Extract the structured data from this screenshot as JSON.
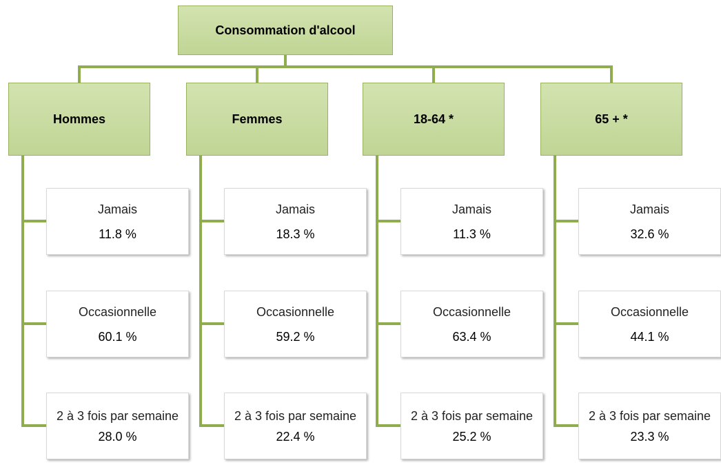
{
  "root": {
    "title": "Consommation d'alcool"
  },
  "groups": [
    {
      "label": "Hommes",
      "items": [
        {
          "label": "Jamais",
          "value": "11.8 %"
        },
        {
          "label": "Occasionnelle",
          "value": "60.1 %"
        },
        {
          "label": "2 à 3 fois par semaine",
          "value": "28.0 %"
        }
      ]
    },
    {
      "label": "Femmes",
      "items": [
        {
          "label": "Jamais",
          "value": "18.3 %"
        },
        {
          "label": "Occasionnelle",
          "value": "59.2 %"
        },
        {
          "label": "2 à 3 fois par semaine",
          "value": "22.4 %"
        }
      ]
    },
    {
      "label": "18-64 *",
      "items": [
        {
          "label": "Jamais",
          "value": "11.3 %"
        },
        {
          "label": "Occasionnelle",
          "value": "63.4 %"
        },
        {
          "label": "2 à 3 fois par semaine",
          "value": "25.2 %"
        }
      ]
    },
    {
      "label": "65 + *",
      "items": [
        {
          "label": "Jamais",
          "value": "32.6 %"
        },
        {
          "label": "Occasionnelle",
          "value": "44.1 %"
        },
        {
          "label": "2 à 3 fois par semaine",
          "value": "23.3 %"
        }
      ]
    }
  ]
}
